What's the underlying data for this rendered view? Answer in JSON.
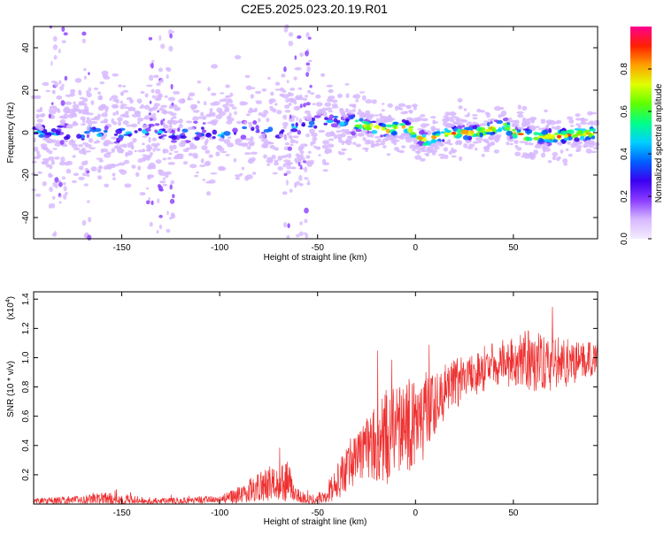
{
  "title": "C2E5.2025.023.20.19.R01",
  "chart_data": [
    {
      "type": "heatmap",
      "name": "spectrogram",
      "xlabel": "Height of straight line (km)",
      "ylabel": "Frequency (Hz)",
      "xlim": [
        -195,
        93
      ],
      "ylim": [
        -50,
        50
      ],
      "xticks": [
        -150,
        -100,
        -50,
        0,
        50
      ],
      "xtick_labels": [
        "-150",
        "-100",
        "-50",
        "0",
        "50"
      ],
      "yticks": [
        -40,
        -20,
        0,
        20,
        40
      ],
      "ytick_labels": [
        "-40",
        "-20",
        "0",
        "20",
        "40"
      ],
      "ridge": {
        "x": [
          -195,
          -150,
          -100,
          -60,
          -50,
          -40,
          -30,
          -20,
          -15,
          -10,
          -5,
          0,
          5,
          10,
          20,
          30,
          40,
          45,
          50,
          55,
          60,
          70,
          80,
          93
        ],
        "y": [
          0,
          0,
          0,
          2,
          4,
          5,
          4,
          2,
          1,
          2,
          3,
          0,
          -4,
          -2,
          0,
          0,
          2,
          4,
          0,
          -1,
          -2,
          -2,
          -1,
          0
        ]
      },
      "colorbar": {
        "label": "Normalized spectral amplitude",
        "range": [
          0,
          1
        ],
        "ticks": [
          0.0,
          0.2,
          0.4,
          0.6,
          0.8
        ],
        "tick_labels": [
          "0.0",
          "0.2",
          "0.4",
          "0.6",
          "0.8"
        ],
        "colors": [
          "#f4ecff",
          "#d7b9ff",
          "#8a3cff",
          "#3a00f0",
          "#0060ff",
          "#00d0ff",
          "#00ff88",
          "#60ff00",
          "#e0ff00",
          "#ffa000",
          "#ff2000",
          "#ff0090"
        ]
      }
    },
    {
      "type": "line",
      "name": "snr",
      "xlabel": "Height of straight line (km)",
      "ylabel": "SNR (10 * v/v)",
      "y_scale_label": "(x10",
      "y_scale_exp": "4",
      "y_scale_close": ")",
      "xlim": [
        -195,
        93
      ],
      "ylim": [
        0,
        1.45
      ],
      "xticks": [
        -150,
        -100,
        -50,
        0,
        50
      ],
      "xtick_labels": [
        "-150",
        "-100",
        "-50",
        "0",
        "50"
      ],
      "yticks": [
        0.2,
        0.4,
        0.6,
        0.8,
        1.0,
        1.2,
        1.4
      ],
      "ytick_labels": [
        "0.2",
        "0.4",
        "0.6",
        "0.8",
        "1.0",
        "1.2",
        "1.4"
      ],
      "color": "#ee3030",
      "envelope": {
        "x": [
          -195,
          -170,
          -160,
          -150,
          -130,
          -100,
          -90,
          -80,
          -75,
          -70,
          -65,
          -60,
          -55,
          -50,
          -45,
          -40,
          -30,
          -20,
          -15,
          -10,
          -5,
          0,
          5,
          10,
          20,
          30,
          40,
          50,
          60,
          70,
          80,
          93
        ],
        "mean": [
          0.02,
          0.03,
          0.04,
          0.03,
          0.02,
          0.03,
          0.06,
          0.12,
          0.14,
          0.13,
          0.16,
          0.06,
          0.03,
          0.04,
          0.08,
          0.15,
          0.3,
          0.4,
          0.45,
          0.5,
          0.55,
          0.52,
          0.6,
          0.7,
          0.82,
          0.9,
          0.95,
          0.98,
          0.98,
          0.96,
          0.97,
          0.98
        ],
        "spread": [
          0.02,
          0.03,
          0.05,
          0.04,
          0.02,
          0.03,
          0.06,
          0.1,
          0.12,
          0.12,
          0.14,
          0.05,
          0.03,
          0.04,
          0.07,
          0.12,
          0.2,
          0.3,
          0.35,
          0.3,
          0.3,
          0.35,
          0.3,
          0.22,
          0.18,
          0.16,
          0.15,
          0.18,
          0.22,
          0.2,
          0.15,
          0.12
        ]
      }
    }
  ]
}
